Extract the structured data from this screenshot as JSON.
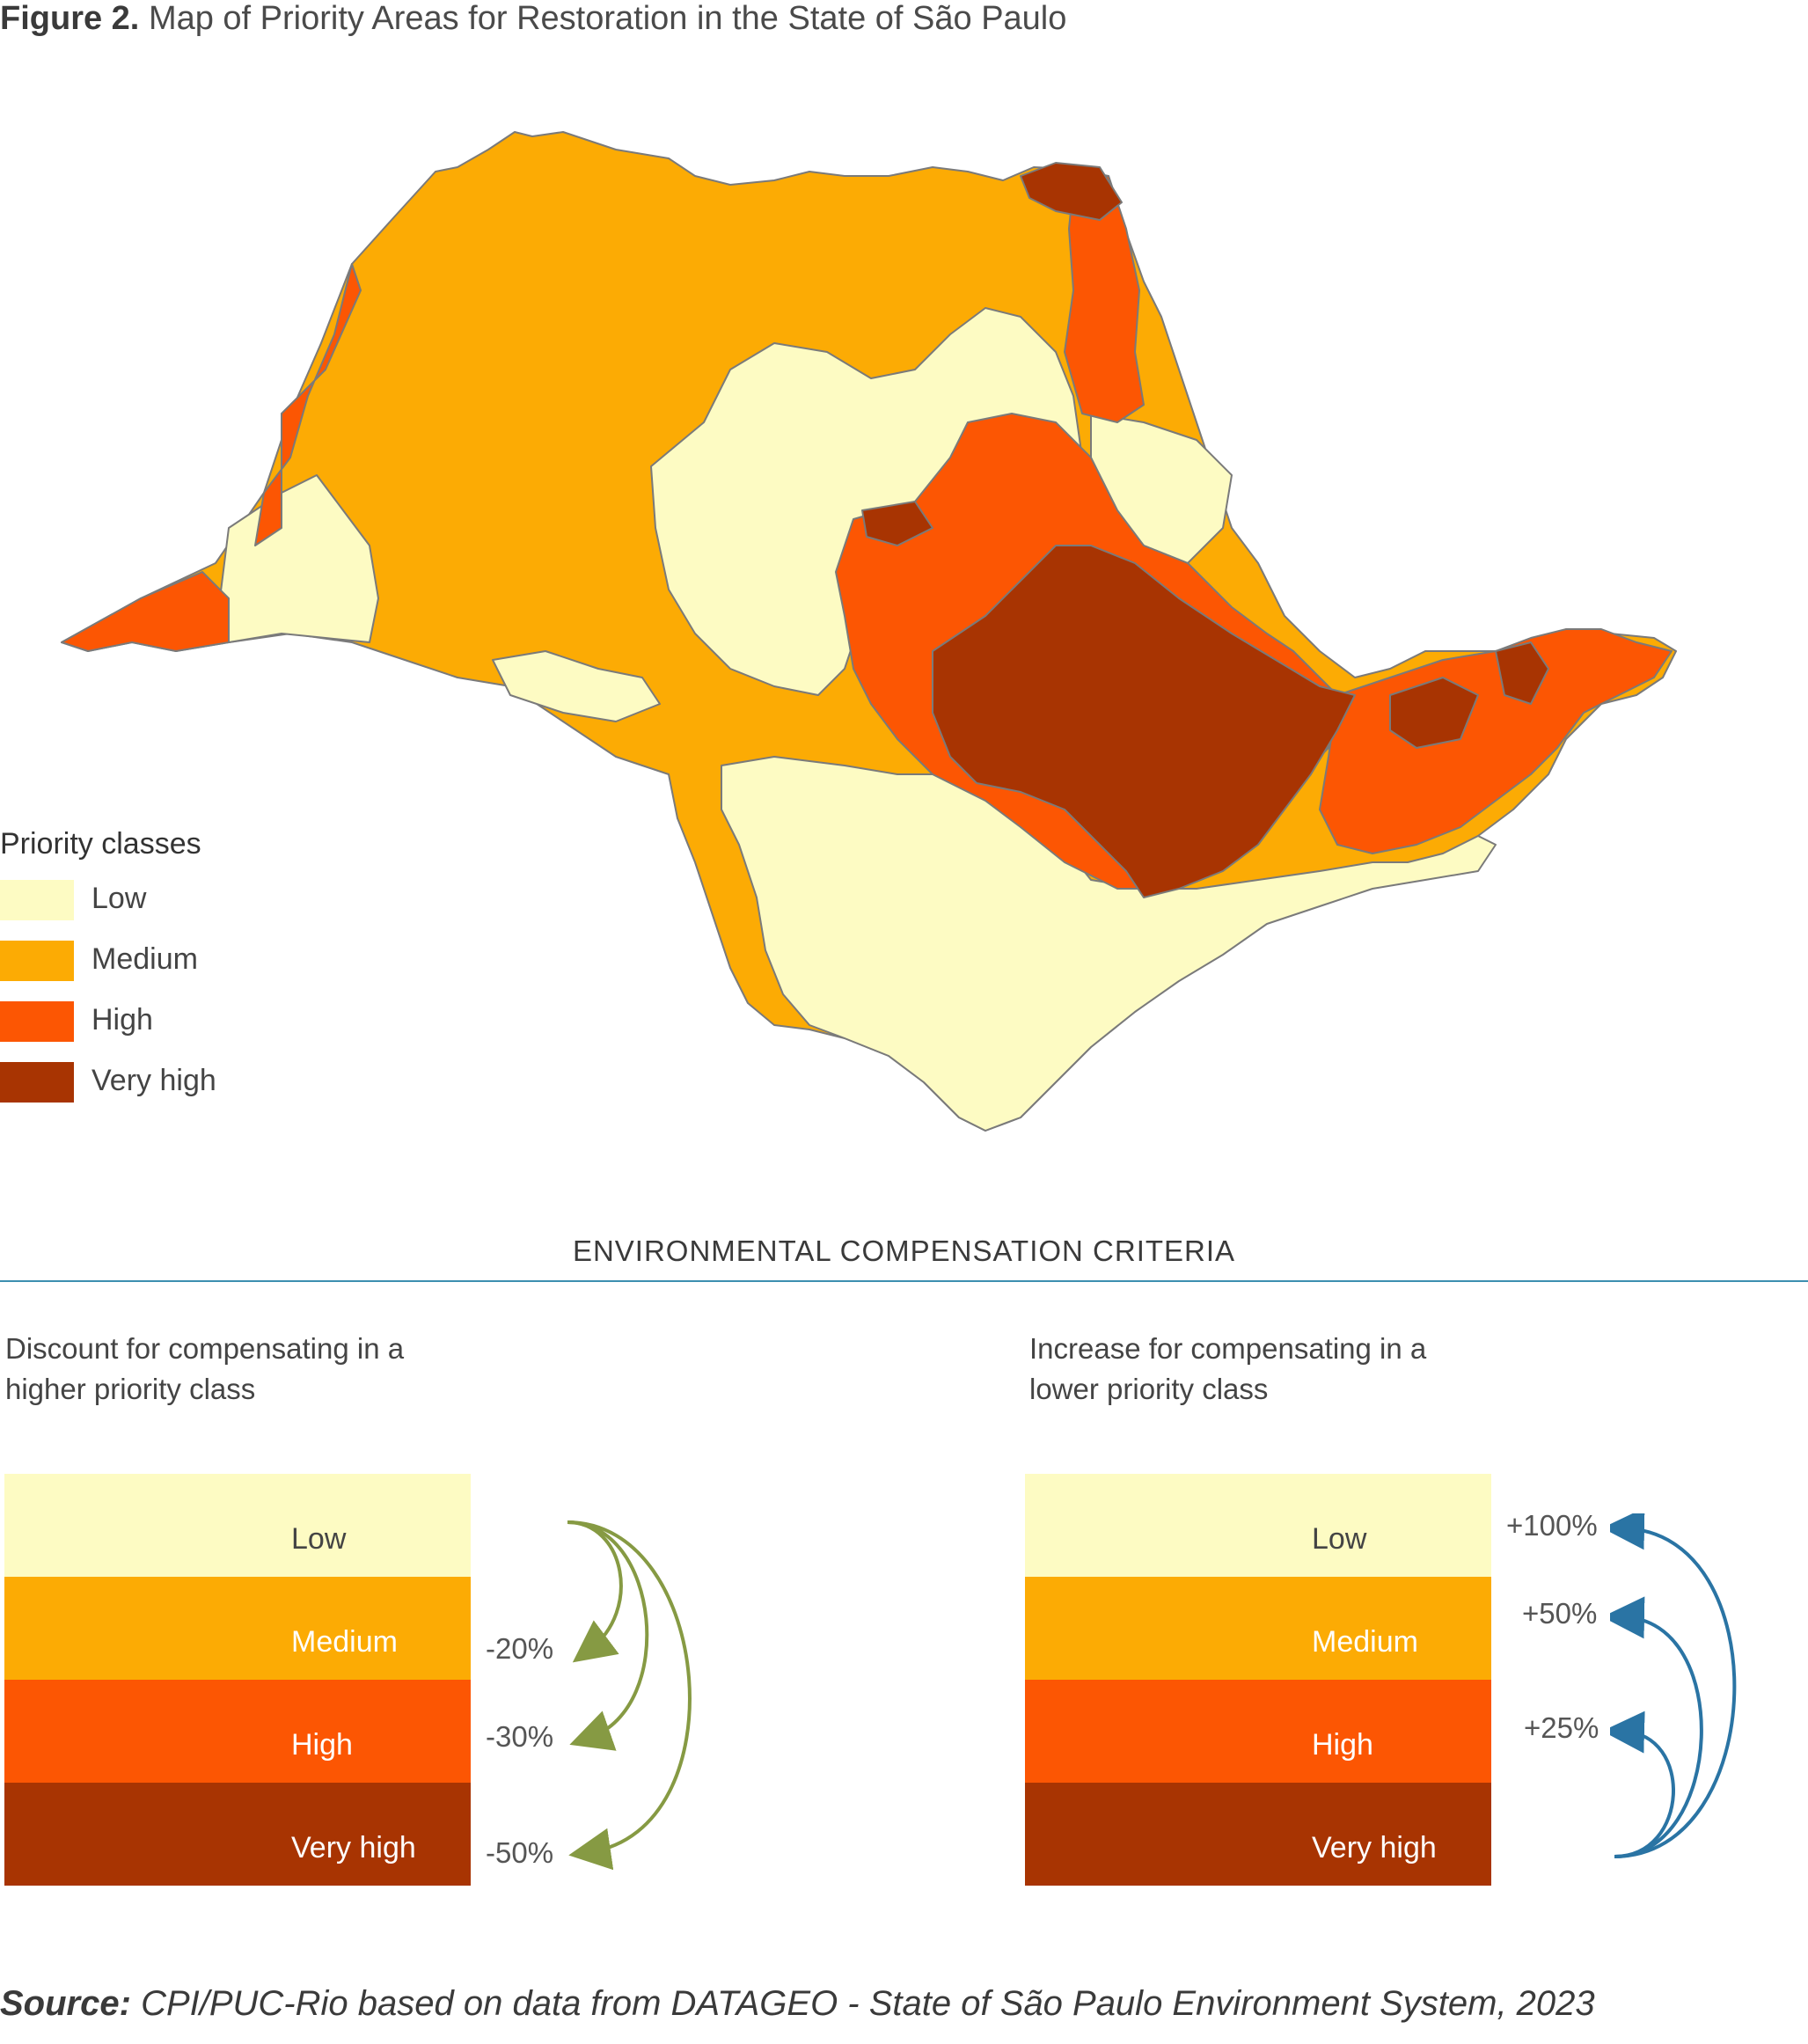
{
  "figure": {
    "label": "Figure 2.",
    "title": "Map of Priority Areas for Restoration in the State of São Paulo"
  },
  "legend": {
    "title": "Priority classes",
    "items": [
      {
        "label": "Low",
        "color": "#fdfbc3"
      },
      {
        "label": "Medium",
        "color": "#fcab04"
      },
      {
        "label": "High",
        "color": "#fc5603"
      },
      {
        "label": "Very high",
        "color": "#a83402"
      }
    ]
  },
  "criteria": {
    "title": "ENVIRONMENTAL COMPENSATION CRITERIA",
    "left": {
      "description_line1": "Discount for compensating in a",
      "description_line2": "higher priority class",
      "classes": [
        "Low",
        "Medium",
        "High",
        "Very high"
      ],
      "adjustments": [
        "-20%",
        "-30%",
        "-50%"
      ],
      "arrow_color": "#869a43"
    },
    "right": {
      "description_line1": "Increase for compensating in a",
      "description_line2": "lower priority class",
      "classes": [
        "Low",
        "Medium",
        "High",
        "Very high"
      ],
      "adjustments": [
        "+100%",
        "+50%",
        "+25%"
      ],
      "arrow_color": "#2a74a4"
    }
  },
  "source": {
    "label": "Source:",
    "text": "CPI/PUC-Rio based on data from DATAGEO - State of São Paulo Environment System, 2023"
  }
}
